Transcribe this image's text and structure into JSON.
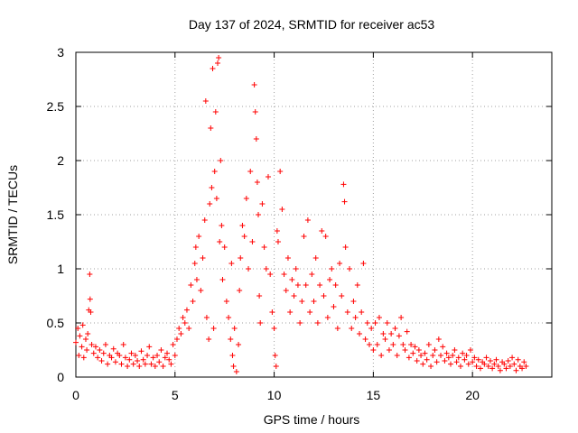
{
  "chart_data": {
    "type": "scatter",
    "title": "Day 137 of 2024, SRMTID for receiver ac53",
    "xlabel": "GPS time / hours",
    "ylabel": "SRMTID / TECUs",
    "xlim": [
      0,
      24
    ],
    "ylim": [
      0,
      3
    ],
    "xticks": [
      0,
      5,
      10,
      15,
      20
    ],
    "xtick_labels": [
      "0",
      "5",
      "10",
      "15",
      "20"
    ],
    "yticks": [
      0,
      0.5,
      1,
      1.5,
      2,
      2.5,
      3
    ],
    "ytick_labels": [
      "0",
      "0.5",
      "1",
      "1.5",
      "2",
      "2.5",
      "3"
    ],
    "grid": true,
    "marker": "plus",
    "color": "#ff0000",
    "series": [
      {
        "name": "SRMTID",
        "points": [
          [
            0.0,
            0.32
          ],
          [
            0.1,
            0.45
          ],
          [
            0.15,
            0.2
          ],
          [
            0.2,
            0.38
          ],
          [
            0.3,
            0.28
          ],
          [
            0.35,
            0.48
          ],
          [
            0.4,
            0.18
          ],
          [
            0.5,
            0.35
          ],
          [
            0.55,
            0.25
          ],
          [
            0.6,
            0.4
          ],
          [
            0.65,
            0.62
          ],
          [
            0.7,
            0.95
          ],
          [
            0.72,
            0.72
          ],
          [
            0.75,
            0.6
          ],
          [
            0.8,
            0.3
          ],
          [
            0.9,
            0.22
          ],
          [
            1.0,
            0.28
          ],
          [
            1.1,
            0.18
          ],
          [
            1.2,
            0.25
          ],
          [
            1.3,
            0.15
          ],
          [
            1.4,
            0.22
          ],
          [
            1.5,
            0.3
          ],
          [
            1.6,
            0.12
          ],
          [
            1.7,
            0.2
          ],
          [
            1.8,
            0.18
          ],
          [
            1.9,
            0.26
          ],
          [
            2.0,
            0.14
          ],
          [
            2.1,
            0.22
          ],
          [
            2.2,
            0.2
          ],
          [
            2.3,
            0.12
          ],
          [
            2.4,
            0.3
          ],
          [
            2.5,
            0.18
          ],
          [
            2.6,
            0.1
          ],
          [
            2.7,
            0.16
          ],
          [
            2.8,
            0.22
          ],
          [
            2.9,
            0.12
          ],
          [
            3.0,
            0.2
          ],
          [
            3.1,
            0.15
          ],
          [
            3.2,
            0.1
          ],
          [
            3.3,
            0.24
          ],
          [
            3.4,
            0.16
          ],
          [
            3.5,
            0.12
          ],
          [
            3.6,
            0.2
          ],
          [
            3.7,
            0.28
          ],
          [
            3.8,
            0.12
          ],
          [
            3.9,
            0.18
          ],
          [
            4.0,
            0.1
          ],
          [
            4.1,
            0.2
          ],
          [
            4.2,
            0.14
          ],
          [
            4.3,
            0.25
          ],
          [
            4.4,
            0.1
          ],
          [
            4.5,
            0.18
          ],
          [
            4.6,
            0.22
          ],
          [
            4.7,
            0.16
          ],
          [
            4.8,
            0.12
          ],
          [
            4.9,
            0.3
          ],
          [
            5.0,
            0.2
          ],
          [
            5.1,
            0.35
          ],
          [
            5.2,
            0.45
          ],
          [
            5.3,
            0.4
          ],
          [
            5.4,
            0.55
          ],
          [
            5.5,
            0.5
          ],
          [
            5.6,
            0.62
          ],
          [
            5.7,
            0.45
          ],
          [
            5.8,
            0.85
          ],
          [
            5.9,
            0.7
          ],
          [
            6.0,
            1.05
          ],
          [
            6.05,
            1.2
          ],
          [
            6.1,
            0.9
          ],
          [
            6.2,
            1.3
          ],
          [
            6.3,
            0.8
          ],
          [
            6.4,
            1.1
          ],
          [
            6.5,
            1.45
          ],
          [
            6.55,
            2.55
          ],
          [
            6.6,
            0.55
          ],
          [
            6.7,
            0.35
          ],
          [
            6.75,
            1.6
          ],
          [
            6.8,
            2.3
          ],
          [
            6.85,
            1.75
          ],
          [
            6.9,
            2.85
          ],
          [
            6.95,
            0.45
          ],
          [
            7.0,
            1.9
          ],
          [
            7.05,
            2.45
          ],
          [
            7.1,
            1.65
          ],
          [
            7.15,
            2.9
          ],
          [
            7.2,
            2.95
          ],
          [
            7.25,
            1.25
          ],
          [
            7.3,
            2.0
          ],
          [
            7.35,
            1.4
          ],
          [
            7.4,
            0.9
          ],
          [
            7.5,
            1.2
          ],
          [
            7.6,
            0.7
          ],
          [
            7.7,
            0.55
          ],
          [
            7.8,
            0.35
          ],
          [
            7.85,
            1.05
          ],
          [
            7.9,
            0.2
          ],
          [
            7.95,
            0.1
          ],
          [
            8.0,
            0.45
          ],
          [
            8.1,
            0.05
          ],
          [
            8.2,
            0.3
          ],
          [
            8.25,
            0.8
          ],
          [
            8.3,
            1.1
          ],
          [
            8.4,
            1.4
          ],
          [
            8.5,
            1.3
          ],
          [
            8.6,
            1.65
          ],
          [
            8.7,
            1.0
          ],
          [
            8.8,
            1.9
          ],
          [
            8.9,
            1.25
          ],
          [
            9.0,
            2.7
          ],
          [
            9.05,
            2.45
          ],
          [
            9.1,
            2.2
          ],
          [
            9.15,
            1.8
          ],
          [
            9.2,
            1.5
          ],
          [
            9.25,
            0.75
          ],
          [
            9.3,
            0.5
          ],
          [
            9.4,
            1.6
          ],
          [
            9.5,
            1.2
          ],
          [
            9.6,
            1.0
          ],
          [
            9.7,
            1.85
          ],
          [
            9.8,
            0.95
          ],
          [
            9.9,
            0.6
          ],
          [
            10.0,
            0.45
          ],
          [
            10.05,
            0.2
          ],
          [
            10.1,
            0.1
          ],
          [
            10.15,
            1.35
          ],
          [
            10.2,
            1.25
          ],
          [
            10.3,
            1.9
          ],
          [
            10.4,
            1.55
          ],
          [
            10.5,
            0.95
          ],
          [
            10.6,
            0.8
          ],
          [
            10.7,
            1.1
          ],
          [
            10.8,
            0.6
          ],
          [
            10.9,
            0.9
          ],
          [
            11.0,
            0.75
          ],
          [
            11.1,
            1.0
          ],
          [
            11.2,
            0.85
          ],
          [
            11.3,
            0.5
          ],
          [
            11.4,
            0.7
          ],
          [
            11.5,
            1.3
          ],
          [
            11.6,
            0.85
          ],
          [
            11.7,
            1.45
          ],
          [
            11.8,
            0.6
          ],
          [
            11.9,
            0.95
          ],
          [
            12.0,
            0.7
          ],
          [
            12.1,
            1.1
          ],
          [
            12.2,
            0.5
          ],
          [
            12.3,
            0.85
          ],
          [
            12.4,
            1.35
          ],
          [
            12.5,
            0.75
          ],
          [
            12.6,
            1.3
          ],
          [
            12.7,
            0.55
          ],
          [
            12.8,
            0.9
          ],
          [
            12.9,
            1.0
          ],
          [
            13.0,
            0.65
          ],
          [
            13.1,
            0.85
          ],
          [
            13.2,
            0.45
          ],
          [
            13.3,
            1.05
          ],
          [
            13.4,
            0.75
          ],
          [
            13.5,
            1.78
          ],
          [
            13.55,
            1.62
          ],
          [
            13.6,
            1.2
          ],
          [
            13.7,
            0.6
          ],
          [
            13.8,
            1.0
          ],
          [
            13.9,
            0.45
          ],
          [
            14.0,
            0.7
          ],
          [
            14.1,
            0.55
          ],
          [
            14.2,
            0.85
          ],
          [
            14.3,
            0.4
          ],
          [
            14.4,
            0.6
          ],
          [
            14.5,
            1.05
          ],
          [
            14.6,
            0.35
          ],
          [
            14.7,
            0.5
          ],
          [
            14.8,
            0.3
          ],
          [
            14.9,
            0.45
          ],
          [
            15.0,
            0.25
          ],
          [
            15.1,
            0.5
          ],
          [
            15.2,
            0.3
          ],
          [
            15.3,
            0.55
          ],
          [
            15.4,
            0.2
          ],
          [
            15.5,
            0.4
          ],
          [
            15.6,
            0.35
          ],
          [
            15.7,
            0.5
          ],
          [
            15.8,
            0.25
          ],
          [
            15.9,
            0.4
          ],
          [
            16.0,
            0.3
          ],
          [
            16.1,
            0.45
          ],
          [
            16.2,
            0.2
          ],
          [
            16.3,
            0.38
          ],
          [
            16.4,
            0.55
          ],
          [
            16.5,
            0.3
          ],
          [
            16.6,
            0.25
          ],
          [
            16.7,
            0.42
          ],
          [
            16.8,
            0.18
          ],
          [
            16.9,
            0.3
          ],
          [
            17.0,
            0.22
          ],
          [
            17.1,
            0.28
          ],
          [
            17.2,
            0.15
          ],
          [
            17.3,
            0.25
          ],
          [
            17.4,
            0.2
          ],
          [
            17.5,
            0.12
          ],
          [
            17.6,
            0.22
          ],
          [
            17.7,
            0.16
          ],
          [
            17.8,
            0.3
          ],
          [
            17.9,
            0.1
          ],
          [
            18.0,
            0.2
          ],
          [
            18.1,
            0.25
          ],
          [
            18.2,
            0.14
          ],
          [
            18.3,
            0.35
          ],
          [
            18.4,
            0.2
          ],
          [
            18.5,
            0.28
          ],
          [
            18.6,
            0.15
          ],
          [
            18.7,
            0.22
          ],
          [
            18.8,
            0.18
          ],
          [
            18.9,
            0.12
          ],
          [
            19.0,
            0.2
          ],
          [
            19.1,
            0.25
          ],
          [
            19.2,
            0.14
          ],
          [
            19.3,
            0.18
          ],
          [
            19.4,
            0.1
          ],
          [
            19.5,
            0.22
          ],
          [
            19.6,
            0.16
          ],
          [
            19.7,
            0.2
          ],
          [
            19.8,
            0.12
          ],
          [
            19.9,
            0.25
          ],
          [
            20.0,
            0.14
          ],
          [
            20.1,
            0.18
          ],
          [
            20.2,
            0.1
          ],
          [
            20.3,
            0.16
          ],
          [
            20.4,
            0.08
          ],
          [
            20.5,
            0.14
          ],
          [
            20.6,
            0.12
          ],
          [
            20.7,
            0.18
          ],
          [
            20.8,
            0.1
          ],
          [
            20.9,
            0.15
          ],
          [
            21.0,
            0.08
          ],
          [
            21.1,
            0.12
          ],
          [
            21.2,
            0.16
          ],
          [
            21.3,
            0.1
          ],
          [
            21.4,
            0.06
          ],
          [
            21.5,
            0.14
          ],
          [
            21.6,
            0.12
          ],
          [
            21.7,
            0.08
          ],
          [
            21.8,
            0.15
          ],
          [
            21.9,
            0.1
          ],
          [
            22.0,
            0.18
          ],
          [
            22.1,
            0.12
          ],
          [
            22.2,
            0.06
          ],
          [
            22.3,
            0.16
          ],
          [
            22.4,
            0.1
          ],
          [
            22.5,
            0.08
          ],
          [
            22.6,
            0.14
          ],
          [
            22.7,
            0.1
          ]
        ]
      }
    ]
  }
}
